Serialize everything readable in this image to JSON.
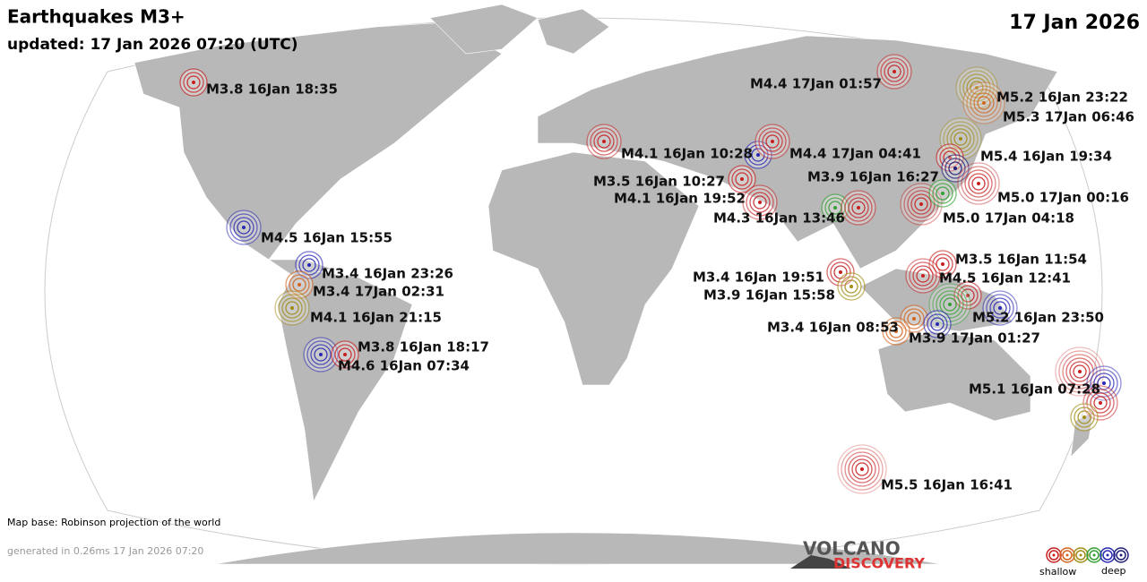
{
  "header": {
    "title": "Earthquakes M3+",
    "updated": "updated: 17 Jan 2026 07:20 (UTC)",
    "date": "17 Jan 2026"
  },
  "quakes": [
    {
      "label": "M3.8 16Jan 18:35"
    },
    {
      "label": "M4.4 17Jan 01:57"
    },
    {
      "label": "M5.2 16Jan 23:22"
    },
    {
      "label": "M5.3 17Jan 06:46"
    },
    {
      "label": "M4.1 16Jan 10:28"
    },
    {
      "label": "M4.4 17Jan 04:41"
    },
    {
      "label": "M5.4 16Jan 19:34"
    },
    {
      "label": "M3.5 16Jan 10:27"
    },
    {
      "label": "M3.9 16Jan 16:27"
    },
    {
      "label": "M4.1 16Jan 19:52"
    },
    {
      "label": "M5.0 17Jan 00:16"
    },
    {
      "label": "M4.3 16Jan 13:46"
    },
    {
      "label": "M5.0 17Jan 04:18"
    },
    {
      "label": "M4.5 16Jan 15:55"
    },
    {
      "label": "M3.5 16Jan 11:54"
    },
    {
      "label": "M3.4 16Jan 23:26"
    },
    {
      "label": "M3.4 16Jan 19:51"
    },
    {
      "label": "M4.5 16Jan 12:41"
    },
    {
      "label": "M3.4 17Jan 02:31"
    },
    {
      "label": "M3.9 16Jan 15:58"
    },
    {
      "label": "M4.1 16Jan 21:15"
    },
    {
      "label": "M5.2 16Jan 23:50"
    },
    {
      "label": "M3.4 16Jan 08:53"
    },
    {
      "label": "M3.9 17Jan 01:27"
    },
    {
      "label": "M3.8 16Jan 18:17"
    },
    {
      "label": "M4.6 16Jan 07:34"
    },
    {
      "label": "M5.1 16Jan 07:28"
    },
    {
      "label": "M5.5 16Jan 16:41"
    }
  ],
  "footer": {
    "map_base": "Map base: Robinson projection of the world",
    "generated": "generated in 0.26ms 17 Jan 2026 07:20",
    "logo_top": "VOLCANO",
    "logo_bottom": "DISCOVERY"
  },
  "legend": {
    "shallow": "shallow",
    "deep": "deep"
  }
}
